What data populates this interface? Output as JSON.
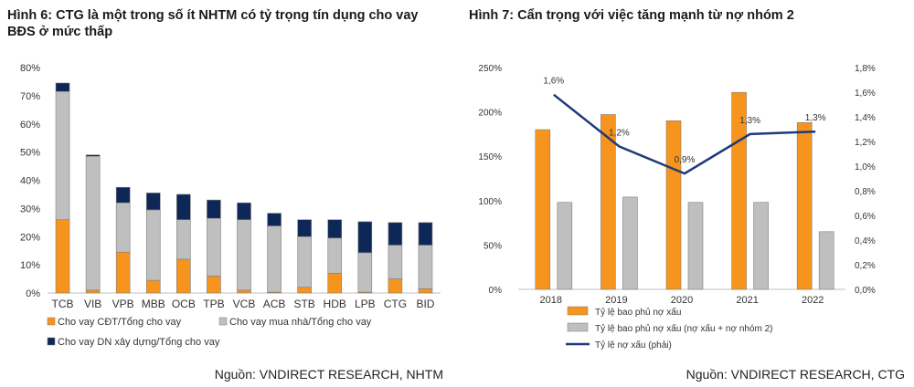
{
  "colors": {
    "orange": "#F7941D",
    "gray": "#BFBFBF",
    "navy": "#0D2757",
    "line": "#1F3A7A",
    "axis_text": "#333333"
  },
  "chart_data": [
    {
      "type": "bar",
      "stacked": true,
      "title": "Hình 6: CTG là một trong số ít NHTM có tỷ trọng tín dụng cho vay BĐS ở mức thấp",
      "source": "Nguồn: VNDIRECT RESEARCH, NHTM",
      "categories": [
        "TCB",
        "VIB",
        "VPB",
        "MBB",
        "OCB",
        "TPB",
        "VCB",
        "ACB",
        "STB",
        "HDB",
        "LPB",
        "CTG",
        "BID"
      ],
      "ylim": [
        0,
        80
      ],
      "yticks": [
        "0%",
        "10%",
        "20%",
        "30%",
        "40%",
        "50%",
        "60%",
        "70%",
        "80%"
      ],
      "unit": "%",
      "grid": false,
      "legend_position": "bottom",
      "series": [
        {
          "name": "Cho vay CĐT/Tổng cho vay",
          "color": "#F7941D",
          "values": [
            26,
            1,
            14.5,
            4.5,
            12,
            6,
            1,
            0.3,
            2,
            7,
            0.3,
            5,
            1.5
          ]
        },
        {
          "name": "Cho vay mua nhà/Tổng cho vay",
          "color": "#BFBFBF",
          "values": [
            45.5,
            47.5,
            17.5,
            25,
            14,
            20.5,
            25,
            23.5,
            18,
            12.5,
            14,
            12,
            15.5
          ]
        },
        {
          "name": "Cho vay DN xây dựng/Tổng cho vay",
          "color": "#0D2757",
          "values": [
            3,
            0.5,
            5.5,
            6,
            9,
            6.5,
            6,
            4.5,
            6,
            6.5,
            11,
            8,
            8
          ]
        }
      ]
    },
    {
      "type": "bar",
      "title": "Hình 7: Cẩn trọng với việc tăng mạnh từ nợ nhóm 2",
      "source": "Nguồn: VNDIRECT RESEARCH, CTG",
      "categories": [
        "2018",
        "2019",
        "2020",
        "2021",
        "2022"
      ],
      "ylim": [
        0,
        250
      ],
      "yticks": [
        "0%",
        "50%",
        "100%",
        "150%",
        "200%",
        "250%"
      ],
      "y2lim": [
        0,
        1.8
      ],
      "y2ticks": [
        "0,0%",
        "0,2%",
        "0,4%",
        "0,6%",
        "0,8%",
        "1,0%",
        "1,2%",
        "1,4%",
        "1,6%",
        "1,8%"
      ],
      "grid": false,
      "legend_position": "bottom",
      "series": [
        {
          "name": "Tỷ lệ bao phủ nợ xấu",
          "type": "bar",
          "axis": "left",
          "color": "#F7941D",
          "values": [
            180,
            197,
            190,
            222,
            188
          ]
        },
        {
          "name": "Tỷ lệ bao phủ nợ xấu (nợ xấu + nợ nhóm 2)",
          "type": "bar",
          "axis": "left",
          "color": "#BFBFBF",
          "values": [
            98,
            104,
            98,
            98,
            65
          ]
        },
        {
          "name": "Tỷ lệ nợ xấu (phải)",
          "type": "line",
          "axis": "right",
          "color": "#1F3A7A",
          "values": [
            1.58,
            1.16,
            0.94,
            1.26,
            1.28
          ],
          "labels": [
            "1,6%",
            "1,2%",
            "0,9%",
            "1,3%",
            "1,3%"
          ]
        }
      ]
    }
  ]
}
